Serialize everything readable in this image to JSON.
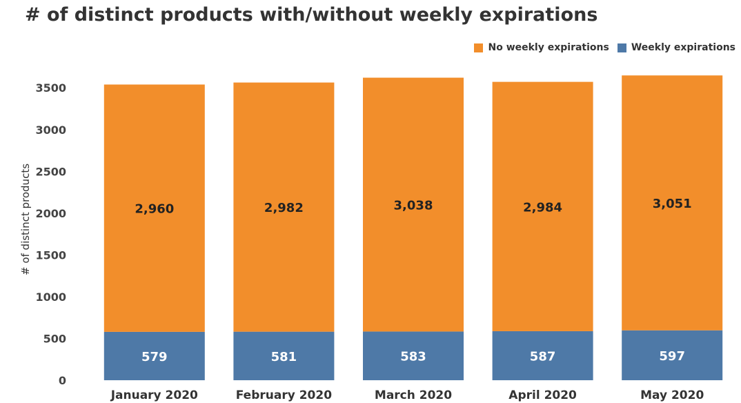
{
  "chart_data": {
    "type": "bar",
    "stacked": true,
    "title": "# of distinct products with/without weekly expirations",
    "xlabel": "",
    "ylabel": "# of distinct products",
    "ylim": [
      0,
      3700
    ],
    "yticks": [
      0,
      500,
      1000,
      1500,
      2000,
      2500,
      3000,
      3500
    ],
    "grid": false,
    "legend_position": "top-right",
    "categories": [
      "January 2020",
      "February 2020",
      "March 2020",
      "April 2020",
      "May 2020"
    ],
    "series": [
      {
        "name": "Weekly expirations",
        "color": "#4e79a7",
        "values": [
          579,
          581,
          583,
          587,
          597
        ],
        "labels": [
          "579",
          "581",
          "583",
          "587",
          "597"
        ]
      },
      {
        "name": "No weekly expirations",
        "color": "#f28e2b",
        "values": [
          2960,
          2982,
          3038,
          2984,
          3051
        ],
        "labels": [
          "2,960",
          "2,982",
          "3,038",
          "2,984",
          "3,051"
        ]
      }
    ],
    "legend_order": [
      "No weekly expirations",
      "Weekly expirations"
    ]
  }
}
